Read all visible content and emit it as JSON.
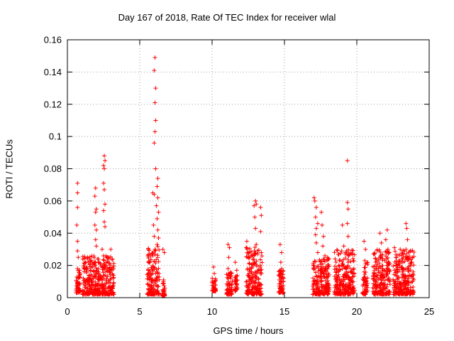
{
  "chart_data": {
    "type": "scatter",
    "title": "Day 167 of 2018, Rate Of TEC Index for receiver wlal",
    "xlabel": "GPS time / hours",
    "ylabel": "ROTI / TECUs",
    "xlim": [
      0,
      25
    ],
    "ylim": [
      0,
      0.16
    ],
    "xticks": [
      0,
      5,
      10,
      15,
      20,
      25
    ],
    "xtick_labels": [
      "0",
      "5",
      "10",
      "15",
      "20",
      "25"
    ],
    "yticks": [
      0,
      0.02,
      0.04,
      0.06,
      0.08,
      0.1,
      0.12,
      0.14,
      0.16
    ],
    "ytick_labels": [
      "0",
      "0.02",
      "0.04",
      "0.06",
      "0.08",
      "0.1",
      "0.12",
      "0.14",
      "0.16"
    ],
    "grid": true,
    "marker": "+",
    "color": "#ff0000",
    "series": [
      {
        "name": "ROTI",
        "points": [
          [
            0.7,
            0.071
          ],
          [
            0.7,
            0.065
          ],
          [
            0.7,
            0.056
          ],
          [
            0.65,
            0.045
          ],
          [
            0.7,
            0.035
          ],
          [
            0.7,
            0.029
          ],
          [
            0.75,
            0.025
          ],
          [
            0.7,
            0.018
          ],
          [
            0.8,
            0.013
          ],
          [
            0.7,
            0.009
          ],
          [
            0.75,
            0.006
          ],
          [
            0.7,
            0.004
          ],
          [
            1.1,
            0.012
          ],
          [
            1.2,
            0.008
          ],
          [
            1.3,
            0.019
          ],
          [
            1.4,
            0.025
          ],
          [
            1.5,
            0.014
          ],
          [
            1.6,
            0.006
          ],
          [
            1.7,
            0.022
          ],
          [
            1.2,
            0.004
          ],
          [
            1.4,
            0.01
          ],
          [
            1.6,
            0.017
          ],
          [
            1.95,
            0.068
          ],
          [
            1.9,
            0.063
          ],
          [
            2.0,
            0.055
          ],
          [
            1.95,
            0.053
          ],
          [
            1.9,
            0.045
          ],
          [
            2.0,
            0.042
          ],
          [
            1.95,
            0.036
          ],
          [
            2.0,
            0.032
          ],
          [
            2.1,
            0.024
          ],
          [
            2.05,
            0.017
          ],
          [
            1.9,
            0.013
          ],
          [
            2.0,
            0.008
          ],
          [
            2.1,
            0.005
          ],
          [
            2.55,
            0.088
          ],
          [
            2.6,
            0.085
          ],
          [
            2.5,
            0.082
          ],
          [
            2.55,
            0.08
          ],
          [
            2.5,
            0.071
          ],
          [
            2.55,
            0.067
          ],
          [
            2.6,
            0.058
          ],
          [
            2.5,
            0.054
          ],
          [
            2.55,
            0.047
          ],
          [
            2.6,
            0.044
          ],
          [
            2.4,
            0.03
          ],
          [
            2.5,
            0.026
          ],
          [
            2.6,
            0.019
          ],
          [
            2.45,
            0.012
          ],
          [
            2.55,
            0.007
          ],
          [
            2.5,
            0.003
          ],
          [
            2.8,
            0.025
          ],
          [
            2.9,
            0.018
          ],
          [
            3.0,
            0.03
          ],
          [
            3.1,
            0.024
          ],
          [
            2.95,
            0.011
          ],
          [
            3.05,
            0.006
          ],
          [
            2.85,
            0.003
          ],
          [
            5.6,
            0.03
          ],
          [
            5.7,
            0.022
          ],
          [
            5.6,
            0.013
          ],
          [
            5.7,
            0.007
          ],
          [
            5.75,
            0.004
          ],
          [
            5.9,
            0.065
          ],
          [
            6.0,
            0.064
          ],
          [
            5.95,
            0.045
          ],
          [
            6.0,
            0.038
          ],
          [
            6.05,
            0.03
          ],
          [
            5.9,
            0.026
          ],
          [
            6.0,
            0.018
          ],
          [
            6.1,
            0.011
          ],
          [
            6.05,
            0.005
          ],
          [
            6.05,
            0.149
          ],
          [
            6.0,
            0.141
          ],
          [
            6.1,
            0.13
          ],
          [
            6.05,
            0.121
          ],
          [
            6.1,
            0.11
          ],
          [
            6.05,
            0.103
          ],
          [
            6.0,
            0.096
          ],
          [
            6.1,
            0.08
          ],
          [
            6.25,
            0.074
          ],
          [
            6.2,
            0.069
          ],
          [
            6.25,
            0.062
          ],
          [
            6.15,
            0.057
          ],
          [
            6.3,
            0.053
          ],
          [
            6.2,
            0.049
          ],
          [
            6.25,
            0.042
          ],
          [
            6.3,
            0.037
          ],
          [
            6.2,
            0.033
          ],
          [
            6.25,
            0.025
          ],
          [
            6.3,
            0.018
          ],
          [
            6.2,
            0.012
          ],
          [
            6.25,
            0.007
          ],
          [
            6.3,
            0.003
          ],
          [
            6.6,
            0.03
          ],
          [
            6.7,
            0.028
          ],
          [
            6.65,
            0.011
          ],
          [
            6.6,
            0.005
          ],
          [
            6.7,
            0.002
          ],
          [
            10.1,
            0.019
          ],
          [
            10.15,
            0.015
          ],
          [
            10.2,
            0.01
          ],
          [
            10.1,
            0.007
          ],
          [
            10.2,
            0.005
          ],
          [
            11.1,
            0.033
          ],
          [
            11.2,
            0.031
          ],
          [
            11.15,
            0.025
          ],
          [
            11.1,
            0.018
          ],
          [
            11.3,
            0.012
          ],
          [
            11.2,
            0.005
          ],
          [
            11.15,
            0.002
          ],
          [
            11.6,
            0.022
          ],
          [
            11.7,
            0.017
          ],
          [
            11.65,
            0.011
          ],
          [
            11.7,
            0.006
          ],
          [
            12.4,
            0.035
          ],
          [
            12.5,
            0.028
          ],
          [
            12.45,
            0.018
          ],
          [
            12.55,
            0.011
          ],
          [
            12.5,
            0.004
          ],
          [
            12.9,
            0.057
          ],
          [
            13.0,
            0.06
          ],
          [
            13.05,
            0.058
          ],
          [
            12.95,
            0.05
          ],
          [
            13.0,
            0.043
          ],
          [
            13.05,
            0.033
          ],
          [
            13.0,
            0.027
          ],
          [
            12.9,
            0.021
          ],
          [
            13.1,
            0.015
          ],
          [
            13.0,
            0.009
          ],
          [
            13.1,
            0.004
          ],
          [
            13.35,
            0.056
          ],
          [
            13.4,
            0.051
          ],
          [
            13.35,
            0.041
          ],
          [
            13.4,
            0.028
          ],
          [
            13.35,
            0.017
          ],
          [
            13.4,
            0.008
          ],
          [
            13.3,
            0.004
          ],
          [
            14.7,
            0.033
          ],
          [
            14.8,
            0.028
          ],
          [
            14.75,
            0.022
          ],
          [
            14.7,
            0.017
          ],
          [
            14.8,
            0.012
          ],
          [
            14.75,
            0.008
          ],
          [
            14.85,
            0.005
          ],
          [
            17.05,
            0.062
          ],
          [
            17.1,
            0.06
          ],
          [
            17.2,
            0.056
          ],
          [
            17.15,
            0.05
          ],
          [
            17.3,
            0.046
          ],
          [
            17.2,
            0.043
          ],
          [
            17.15,
            0.039
          ],
          [
            17.2,
            0.034
          ],
          [
            17.3,
            0.028
          ],
          [
            17.2,
            0.013
          ],
          [
            17.15,
            0.008
          ],
          [
            17.3,
            0.004
          ],
          [
            17.55,
            0.053
          ],
          [
            17.6,
            0.045
          ],
          [
            17.7,
            0.038
          ],
          [
            17.65,
            0.032
          ],
          [
            17.8,
            0.026
          ],
          [
            17.6,
            0.021
          ],
          [
            17.9,
            0.018
          ],
          [
            17.7,
            0.013
          ],
          [
            17.85,
            0.008
          ],
          [
            18.0,
            0.004
          ],
          [
            18.5,
            0.024
          ],
          [
            18.6,
            0.018
          ],
          [
            18.7,
            0.013
          ],
          [
            18.8,
            0.008
          ],
          [
            18.6,
            0.004
          ],
          [
            19.0,
            0.045
          ],
          [
            19.1,
            0.032
          ],
          [
            19.2,
            0.028
          ],
          [
            19.0,
            0.021
          ],
          [
            19.1,
            0.013
          ],
          [
            19.2,
            0.007
          ],
          [
            19.35,
            0.085
          ],
          [
            19.35,
            0.059
          ],
          [
            19.4,
            0.055
          ],
          [
            19.35,
            0.046
          ],
          [
            19.4,
            0.038
          ],
          [
            19.3,
            0.029
          ],
          [
            19.4,
            0.022
          ],
          [
            19.35,
            0.014
          ],
          [
            19.45,
            0.008
          ],
          [
            19.4,
            0.004
          ],
          [
            19.7,
            0.027
          ],
          [
            19.8,
            0.018
          ],
          [
            19.75,
            0.01
          ],
          [
            19.8,
            0.004
          ],
          [
            20.5,
            0.035
          ],
          [
            20.6,
            0.03
          ],
          [
            20.55,
            0.023
          ],
          [
            20.5,
            0.016
          ],
          [
            20.65,
            0.01
          ],
          [
            20.55,
            0.004
          ],
          [
            21.2,
            0.027
          ],
          [
            21.3,
            0.022
          ],
          [
            21.25,
            0.013
          ],
          [
            21.35,
            0.006
          ],
          [
            21.6,
            0.04
          ],
          [
            21.7,
            0.034
          ],
          [
            21.65,
            0.025
          ],
          [
            21.75,
            0.018
          ],
          [
            21.7,
            0.011
          ],
          [
            21.8,
            0.004
          ],
          [
            22.0,
            0.036
          ],
          [
            22.1,
            0.042
          ],
          [
            22.15,
            0.03
          ],
          [
            22.1,
            0.02
          ],
          [
            22.2,
            0.012
          ],
          [
            22.15,
            0.004
          ],
          [
            22.6,
            0.031
          ],
          [
            22.7,
            0.025
          ],
          [
            22.75,
            0.016
          ],
          [
            22.8,
            0.01
          ],
          [
            22.7,
            0.004
          ],
          [
            23.0,
            0.03
          ],
          [
            23.1,
            0.024
          ],
          [
            23.15,
            0.016
          ],
          [
            23.05,
            0.008
          ],
          [
            23.1,
            0.003
          ],
          [
            23.4,
            0.046
          ],
          [
            23.45,
            0.043
          ],
          [
            23.5,
            0.036
          ],
          [
            23.4,
            0.03
          ],
          [
            23.5,
            0.024
          ],
          [
            23.6,
            0.018
          ],
          [
            23.5,
            0.01
          ],
          [
            23.6,
            0.004
          ],
          [
            23.8,
            0.022
          ],
          [
            23.9,
            0.016
          ],
          [
            23.85,
            0.01
          ],
          [
            23.9,
            0.004
          ]
        ]
      }
    ],
    "dense_clusters": [
      [
        0.6,
        0.9,
        0.003,
        0.018
      ],
      [
        1.05,
        3.25,
        0.002,
        0.026
      ],
      [
        5.5,
        6.35,
        0.002,
        0.032
      ],
      [
        6.55,
        6.75,
        0.001,
        0.011
      ],
      [
        10.0,
        10.25,
        0.004,
        0.012
      ],
      [
        11.0,
        11.4,
        0.002,
        0.016
      ],
      [
        11.55,
        11.75,
        0.004,
        0.014
      ],
      [
        12.35,
        13.45,
        0.002,
        0.032
      ],
      [
        14.6,
        14.95,
        0.003,
        0.018
      ],
      [
        16.95,
        18.1,
        0.002,
        0.025
      ],
      [
        18.45,
        19.85,
        0.002,
        0.03
      ],
      [
        20.4,
        20.75,
        0.002,
        0.022
      ],
      [
        21.1,
        22.3,
        0.002,
        0.03
      ],
      [
        22.5,
        23.95,
        0.002,
        0.03
      ]
    ]
  }
}
